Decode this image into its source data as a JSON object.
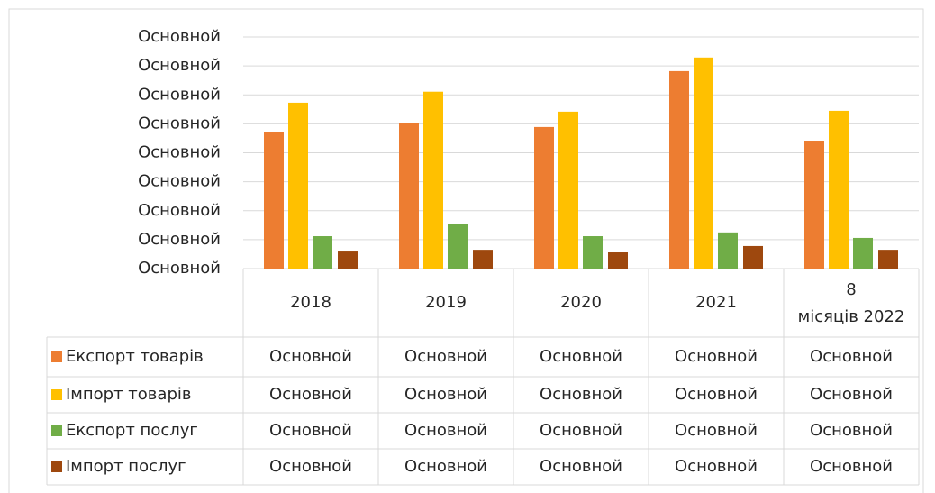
{
  "chart_data": {
    "type": "bar",
    "categories": [
      "2018",
      "2019",
      "2020",
      "2021",
      "8 місяців 2022"
    ],
    "series": [
      {
        "name": "Експорт товарів",
        "color": "#ed7d31",
        "values": [
          47.3,
          50.2,
          48.9,
          68.2,
          44.2
        ],
        "value_labels": [
          "Основной",
          "Основной",
          "Основной",
          "Основной",
          "Основной"
        ]
      },
      {
        "name": "Імпорт товарів",
        "color": "#ffc000",
        "values": [
          57.3,
          61.1,
          54.2,
          72.9,
          54.5
        ],
        "value_labels": [
          "Основной",
          "Основной",
          "Основной",
          "Основной",
          "Основной"
        ]
      },
      {
        "name": "Експорт послуг",
        "color": "#70ad47",
        "values": [
          11.2,
          15.3,
          11.2,
          12.5,
          10.6
        ],
        "value_labels": [
          "Основной",
          "Основной",
          "Основной",
          "Основной",
          "Основной"
        ]
      },
      {
        "name": "Імпорт послуг",
        "color": "#9e480e",
        "values": [
          5.9,
          6.5,
          5.6,
          7.8,
          6.5
        ],
        "value_labels": [
          "Основной",
          "Основной",
          "Основной",
          "Основной",
          "Основной"
        ]
      }
    ],
    "ylim": [
      0,
      80
    ],
    "yticks": [
      {
        "value": 0,
        "label": "Основной"
      },
      {
        "value": 10,
        "label": "Основной"
      },
      {
        "value": 20,
        "label": "Основной"
      },
      {
        "value": 30,
        "label": "Основной"
      },
      {
        "value": 40,
        "label": "Основной"
      },
      {
        "value": 50,
        "label": "Основной"
      },
      {
        "value": 60,
        "label": "Основной"
      },
      {
        "value": 70,
        "label": "Основной"
      },
      {
        "value": 80,
        "label": "Основной"
      }
    ],
    "grid": true
  }
}
